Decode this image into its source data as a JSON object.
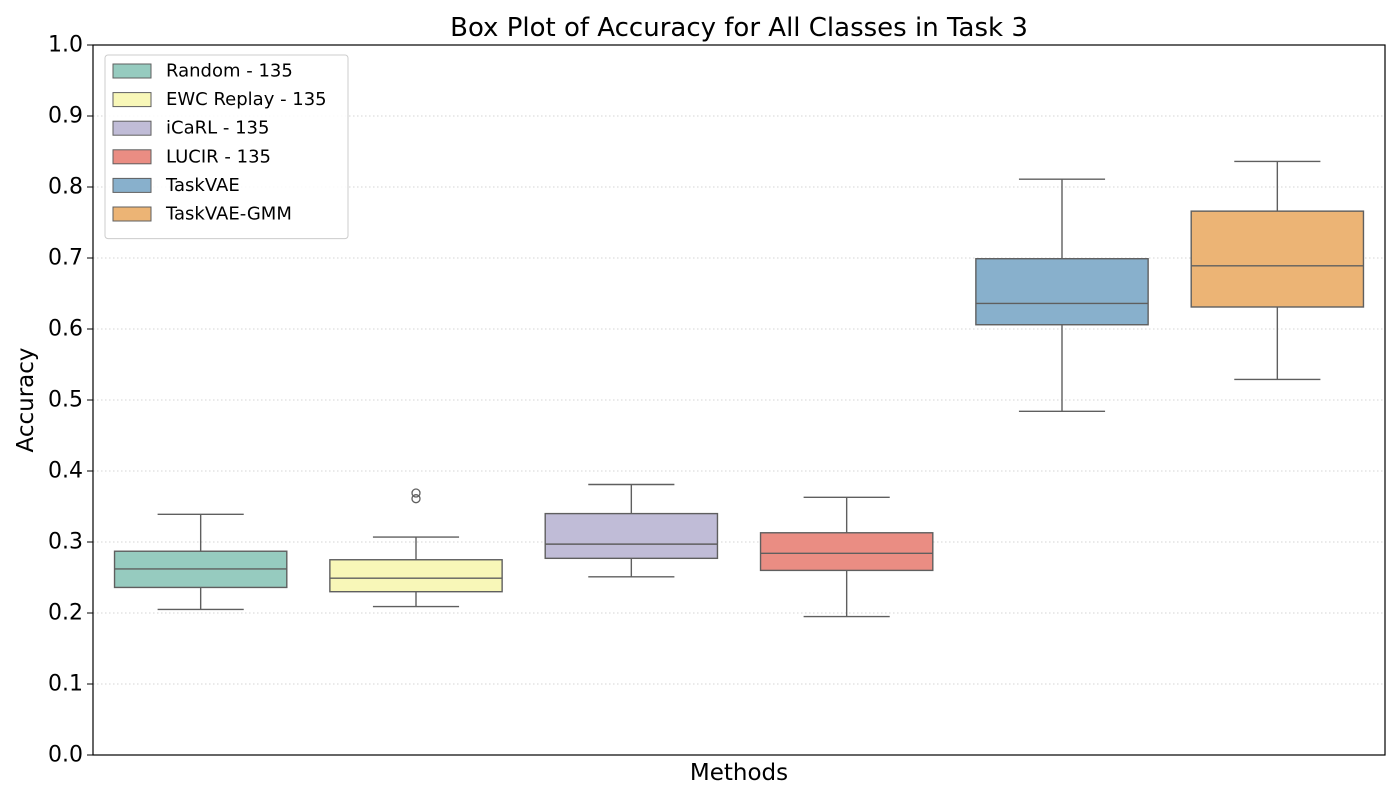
{
  "chart_data": {
    "type": "box",
    "title": "Box Plot of Accuracy for All Classes in Task 3",
    "xlabel": "Methods",
    "ylabel": "Accuracy",
    "ylim": [
      0.0,
      1.0
    ],
    "yticks": [
      "0.0",
      "0.1",
      "0.2",
      "0.3",
      "0.4",
      "0.5",
      "0.6",
      "0.7",
      "0.8",
      "0.9",
      "1.0"
    ],
    "grid": "horizontal dotted",
    "legend_position": "top-left",
    "series": [
      {
        "name": "Random - 135",
        "color": "#96cbbf",
        "whisker_low": 0.205,
        "q1": 0.236,
        "median": 0.262,
        "q3": 0.287,
        "whisker_high": 0.339,
        "outliers": []
      },
      {
        "name": "EWC Replay - 135",
        "color": "#f8f7b8",
        "whisker_low": 0.209,
        "q1": 0.23,
        "median": 0.249,
        "q3": 0.275,
        "whisker_high": 0.307,
        "outliers": [
          0.361,
          0.369
        ]
      },
      {
        "name": "iCaRL - 135",
        "color": "#c0bcd7",
        "whisker_low": 0.251,
        "q1": 0.277,
        "median": 0.297,
        "q3": 0.34,
        "whisker_high": 0.381,
        "outliers": []
      },
      {
        "name": "LUCIR - 135",
        "color": "#ea8d83",
        "whisker_low": 0.195,
        "q1": 0.26,
        "median": 0.284,
        "q3": 0.313,
        "whisker_high": 0.363,
        "outliers": []
      },
      {
        "name": "TaskVAE",
        "color": "#88b0cc",
        "whisker_low": 0.484,
        "q1": 0.606,
        "median": 0.636,
        "q3": 0.699,
        "whisker_high": 0.811,
        "outliers": []
      },
      {
        "name": "TaskVAE-GMM",
        "color": "#ecb475",
        "whisker_low": 0.529,
        "q1": 0.631,
        "median": 0.689,
        "q3": 0.766,
        "whisker_high": 0.836,
        "outliers": []
      }
    ]
  }
}
